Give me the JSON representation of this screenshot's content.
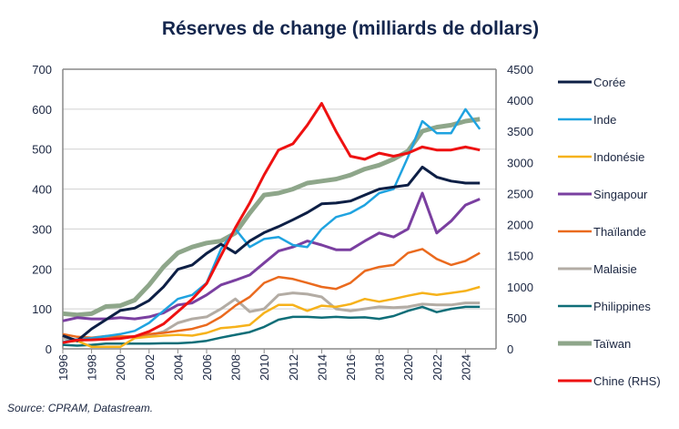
{
  "chart_data": {
    "type": "line",
    "title": "Réserves de change (milliards de dollars)",
    "source": "Source: CPRAM, Datastream.",
    "x_ticks": [
      "1996",
      "1998",
      "2000",
      "2002",
      "2004",
      "2006",
      "2008",
      "2010",
      "2012",
      "2014",
      "2016",
      "2018",
      "2020",
      "2022",
      "2024"
    ],
    "y_left": {
      "range": [
        0,
        700
      ],
      "ticks": [
        "0",
        "100",
        "200",
        "300",
        "400",
        "500",
        "600",
        "700"
      ]
    },
    "y_right": {
      "range": [
        0,
        4500
      ],
      "ticks": [
        "0",
        "500",
        "1000",
        "1500",
        "2000",
        "2500",
        "3000",
        "3500",
        "4000",
        "4500"
      ]
    },
    "grid": true,
    "legend_position": "right",
    "x": [
      1996,
      1997,
      1998,
      1999,
      2000,
      2001,
      2002,
      2003,
      2004,
      2005,
      2006,
      2007,
      2008,
      2009,
      2010,
      2011,
      2012,
      2013,
      2014,
      2015,
      2016,
      2017,
      2018,
      2019,
      2020,
      2021,
      2022,
      2023,
      2024,
      2025
    ],
    "series": [
      {
        "name": "Corée",
        "color": "#0d1f45",
        "axis": "left",
        "width": 3,
        "values": [
          33,
          20,
          50,
          73,
          96,
          102,
          121,
          155,
          199,
          210,
          239,
          262,
          240,
          270,
          291,
          306,
          323,
          341,
          363,
          365,
          370,
          385,
          400,
          405,
          410,
          455,
          430,
          420,
          415,
          415
        ]
      },
      {
        "name": "Inde",
        "color": "#1fa3e0",
        "axis": "left",
        "width": 2.5,
        "values": [
          17,
          24,
          27,
          32,
          37,
          45,
          65,
          95,
          125,
          135,
          165,
          250,
          300,
          255,
          275,
          280,
          260,
          255,
          300,
          330,
          340,
          360,
          390,
          400,
          480,
          570,
          540,
          540,
          600,
          550
        ]
      },
      {
        "name": "Indonésie",
        "color": "#f6b21b",
        "axis": "left",
        "width": 2.5,
        "values": [
          17,
          20,
          5,
          5,
          5,
          27,
          30,
          33,
          35,
          33,
          40,
          52,
          55,
          60,
          90,
          110,
          110,
          95,
          108,
          105,
          112,
          125,
          118,
          125,
          133,
          140,
          135,
          140,
          145,
          155
        ]
      },
      {
        "name": "Singapour",
        "color": "#7a3fa0",
        "axis": "left",
        "width": 3,
        "values": [
          70,
          78,
          75,
          75,
          78,
          75,
          80,
          90,
          110,
          115,
          135,
          160,
          172,
          185,
          215,
          245,
          255,
          270,
          260,
          248,
          248,
          270,
          290,
          280,
          300,
          390,
          290,
          320,
          360,
          375
        ]
      },
      {
        "name": "Thaïlande",
        "color": "#ea6a1e",
        "axis": "left",
        "width": 2.5,
        "values": [
          37,
          30,
          28,
          32,
          31,
          31,
          37,
          40,
          45,
          50,
          60,
          80,
          108,
          130,
          165,
          180,
          175,
          165,
          155,
          150,
          165,
          195,
          205,
          210,
          240,
          250,
          225,
          210,
          220,
          240
        ]
      },
      {
        "name": "Malaisie",
        "color": "#b3aca4",
        "axis": "left",
        "width": 3,
        "values": [
          27,
          20,
          25,
          30,
          29,
          30,
          33,
          43,
          65,
          75,
          80,
          100,
          125,
          93,
          100,
          135,
          140,
          137,
          130,
          100,
          95,
          100,
          105,
          103,
          105,
          112,
          110,
          110,
          115,
          115
        ]
      },
      {
        "name": "Philippines",
        "color": "#0f6e78",
        "axis": "left",
        "width": 2.5,
        "values": [
          10,
          8,
          10,
          13,
          13,
          13,
          13,
          14,
          14,
          16,
          20,
          28,
          35,
          42,
          55,
          73,
          80,
          80,
          78,
          80,
          78,
          79,
          75,
          82,
          95,
          105,
          92,
          100,
          105,
          105
        ]
      },
      {
        "name": "Taïwan",
        "color": "#8ea68a",
        "axis": "left",
        "width": 5,
        "values": [
          88,
          85,
          88,
          106,
          108,
          122,
          160,
          205,
          240,
          255,
          265,
          270,
          290,
          340,
          385,
          390,
          400,
          415,
          420,
          425,
          435,
          450,
          460,
          475,
          495,
          545,
          555,
          560,
          570,
          575
        ]
      },
      {
        "name": "Chine (RHS)",
        "color": "#ee1111",
        "axis": "right",
        "width": 3,
        "values": [
          100,
          140,
          145,
          155,
          165,
          200,
          280,
          400,
          600,
          800,
          1050,
          1500,
          1950,
          2350,
          2800,
          3200,
          3300,
          3600,
          3950,
          3500,
          3100,
          3050,
          3150,
          3100,
          3150,
          3250,
          3200,
          3200,
          3250,
          3200
        ]
      }
    ]
  }
}
